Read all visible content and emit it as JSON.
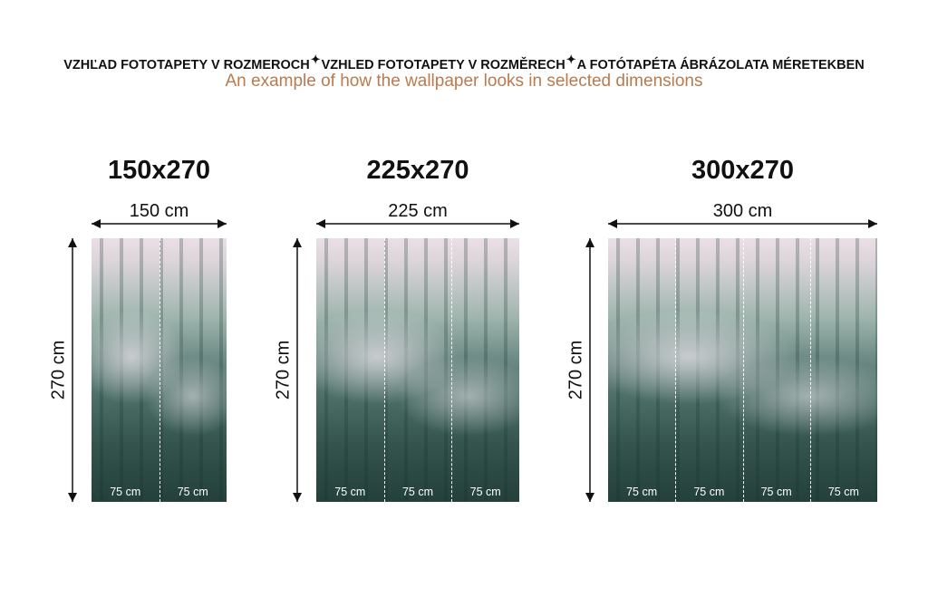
{
  "header": {
    "titles": [
      "VZHĽAD FOTOTAPETY V ROZMEROCH",
      "VZHLED FOTOTAPETY V ROZMĚRECH",
      "A FOTÓTAPÉTA ÁBRÁZOLATA MÉRETEKBEN"
    ],
    "separator_icon": "sparkle-icon",
    "subtitle": "An example of how the wallpaper looks in selected dimensions"
  },
  "colors": {
    "subtitle": "#b97a4e",
    "text": "#111111",
    "seam": "#ffffff"
  },
  "panels": [
    {
      "title": "150x270",
      "width_label": "150 cm",
      "height_label": "270 cm",
      "strips": [
        "75 cm",
        "75 cm"
      ]
    },
    {
      "title": "225x270",
      "width_label": "225 cm",
      "height_label": "270 cm",
      "strips": [
        "75 cm",
        "75 cm",
        "75 cm"
      ]
    },
    {
      "title": "300x270",
      "width_label": "300 cm",
      "height_label": "270 cm",
      "strips": [
        "75 cm",
        "75 cm",
        "75 cm",
        "75 cm"
      ]
    }
  ]
}
